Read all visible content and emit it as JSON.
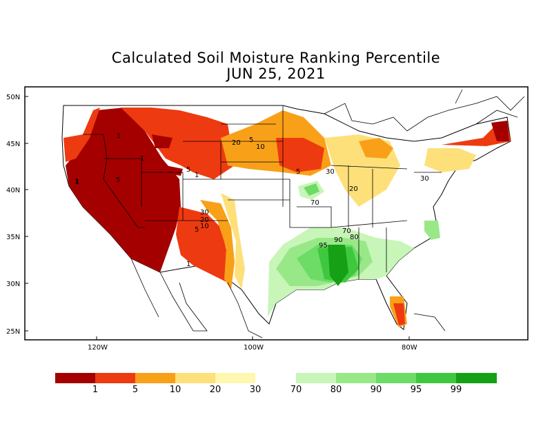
{
  "title": "Calculated Soil Moisture Ranking Percentile",
  "date": "JUN 25, 2021",
  "axes": {
    "lat_labels": [
      "50N",
      "45N",
      "40N",
      "35N",
      "30N",
      "25N"
    ],
    "lon_labels": [
      "120W",
      "100W",
      "80W"
    ]
  },
  "legend": {
    "labels": [
      "1",
      "5",
      "10",
      "20",
      "30",
      "70",
      "80",
      "90",
      "95",
      "99"
    ],
    "colors": [
      "#a50000",
      "#ee3a10",
      "#f9a019",
      "#fde07a",
      "#fff6b0",
      "#c8f5b8",
      "#98e888",
      "#6cdc66",
      "#3fc83f",
      "#15a015"
    ]
  },
  "contour_labels": [
    "1",
    "1",
    "1",
    "1",
    "5",
    "5",
    "1",
    "20",
    "5",
    "10",
    "5",
    "30",
    "20",
    "30",
    "20",
    "10",
    "5",
    "1",
    "70",
    "70",
    "80",
    "95",
    "90",
    "30"
  ]
}
